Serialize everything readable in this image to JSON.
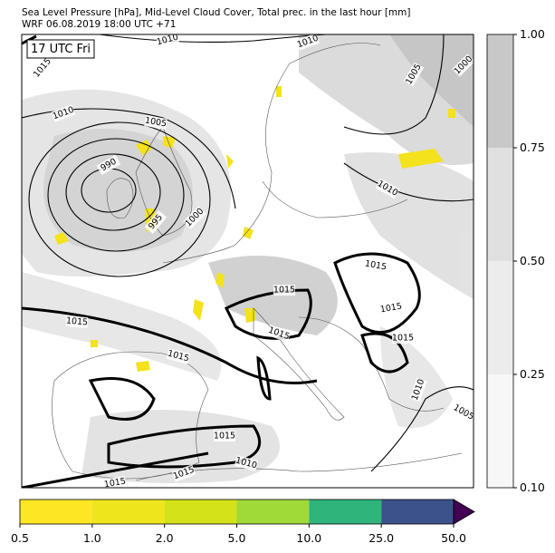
{
  "header": {
    "title_line1": "Sea Level Pressure [hPa], Mid-Level Cloud Cover, Total prec. in the last hour [mm]",
    "title_line2": "WRF 06.08.2019 18:00 UTC +71"
  },
  "map": {
    "time_label": "17 UTC Fri",
    "isobar_labels": [
      "1010",
      "1015",
      "1010",
      "1005",
      "990",
      "995",
      "1000",
      "1010",
      "1005",
      "1000",
      "1010",
      "1015",
      "1015",
      "1015",
      "1015",
      "1015",
      "1015",
      "1015",
      "1010",
      "1005",
      "1015",
      "1010",
      "1015",
      "1015"
    ]
  },
  "cloud_colorbar": {
    "ticks": [
      "0.10",
      "0.25",
      "0.50",
      "0.75",
      "1.00"
    ]
  },
  "precip_colorbar": {
    "ticks": [
      "0.5",
      "1.0",
      "2.0",
      "5.0",
      "10.0",
      "25.0",
      "50.0"
    ]
  }
}
